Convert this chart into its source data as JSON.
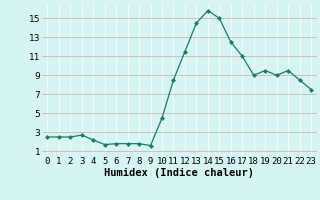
{
  "x": [
    0,
    1,
    2,
    3,
    4,
    5,
    6,
    7,
    8,
    9,
    10,
    11,
    12,
    13,
    14,
    15,
    16,
    17,
    18,
    19,
    20,
    21,
    22,
    23
  ],
  "y": [
    2.5,
    2.5,
    2.5,
    2.7,
    2.2,
    1.7,
    1.8,
    1.8,
    1.8,
    1.6,
    4.5,
    8.5,
    11.5,
    14.5,
    15.8,
    15.0,
    12.5,
    11.0,
    9.0,
    9.5,
    9.0,
    9.5,
    8.5,
    7.5
  ],
  "line_color": "#1a7a6e",
  "marker": "D",
  "marker_size": 2,
  "background_color": "#d6f5f2",
  "grid_color": "#c0e0de",
  "xlabel": "Humidex (Indice chaleur)",
  "xlim": [
    -0.5,
    23.5
  ],
  "ylim": [
    0.5,
    16.5
  ],
  "yticks": [
    1,
    3,
    5,
    7,
    9,
    11,
    13,
    15
  ],
  "xtick_labels": [
    "0",
    "1",
    "2",
    "3",
    "4",
    "5",
    "6",
    "7",
    "8",
    "9",
    "10",
    "11",
    "12",
    "13",
    "14",
    "15",
    "16",
    "17",
    "18",
    "19",
    "20",
    "21",
    "22",
    "23"
  ],
  "xlabel_fontsize": 7.5,
  "tick_fontsize": 6.5
}
